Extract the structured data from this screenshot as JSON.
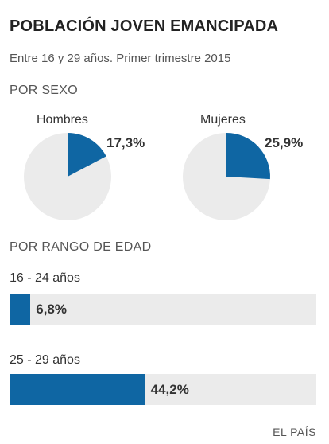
{
  "title": "POBLACIÓN JOVEN EMANCIPADA",
  "subtitle": "Entre 16 y 29 años. Primer trimestre 2015",
  "sections": {
    "by_sex": "POR SEXO",
    "by_age": "POR RANGO DE EDAD"
  },
  "colors": {
    "accent": "#0f66a3",
    "remainder": "#ebebeb"
  },
  "source": "EL PAÍS",
  "chart_data": [
    {
      "type": "pie",
      "group": "POR SEXO",
      "charts": [
        {
          "label": "Hombres",
          "value": 17.3,
          "display": "17,3%"
        },
        {
          "label": "Mujeres",
          "value": 25.9,
          "display": "25,9%"
        }
      ]
    },
    {
      "type": "bar",
      "group": "POR RANGO DE EDAD",
      "orientation": "horizontal",
      "xlim": [
        0,
        100
      ],
      "categories": [
        "16 - 24 años",
        "25 - 29 años"
      ],
      "values": [
        6.8,
        44.2
      ],
      "display": [
        "6,8%",
        "44,2%"
      ]
    }
  ]
}
